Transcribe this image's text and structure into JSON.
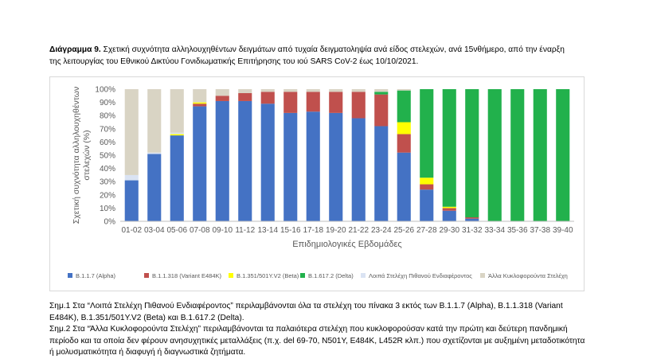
{
  "caption": {
    "bold": "Διάγραμμα 9.",
    "text": " Σχετική συχνότητα αλληλουχηθέντων δειγμάτων από τυχαία δειγματοληψία ανά είδος στελεχών, ανά 15νθήμερο, από την έναρξη της λειτουργίας του Εθνικού Δικτύου Γονιδιωματικής Επιτήρησης του ιού SARS CoV-2 έως 10/10/2021."
  },
  "notes": [
    "Σημ.1 Στα “Λοιπά Στελέχη Πιθανού Ενδιαφέροντος” περιλαμβάνονται όλα τα στελέχη του πίνακα 3 εκτός των B.1.1.7 (Alpha), B.1.1.318 (Variant E484K), B.1.351/501Y.V2 (Beta) και B.1.617.2 (Delta).",
    "Σημ.2 Στα “Άλλα Κυκλοφορούντα Στελέχη” περιλαμβάνονται τα παλαιότερα στελέχη που κυκλοφορούσαν κατά την πρώτη και δεύτερη πανδημική περίοδο και τα οποία δεν φέρουν ανησυχητικές μεταλλάξεις (π.χ. del 69-70, N501Y, E484K, L452R κλπ.) που σχετίζονται με αυξημένη μεταδοτικότητα ή μολυσματικότητα ή διαφυγή ή διαγνωστικά ζητήματα."
  ],
  "chart_data": {
    "type": "bar",
    "stacked": true,
    "xlabel": "Επιδημιολογικές Εβδομάδες",
    "ylabel": "Σχετική συχνότητα αλληλουχηθέντων στελεχών (%)",
    "ylim": [
      0,
      100
    ],
    "yticks": [
      "0%",
      "10%",
      "20%",
      "30%",
      "40%",
      "50%",
      "60%",
      "70%",
      "80%",
      "90%",
      "100%"
    ],
    "grid": false,
    "legend_position": "bottom",
    "categories": [
      "01-02",
      "03-04",
      "05-06",
      "07-08",
      "09-10",
      "11-12",
      "13-14",
      "15-16",
      "17-18",
      "19-20",
      "21-22",
      "23-24",
      "25-26",
      "27-28",
      "29-30",
      "31-32",
      "33-34",
      "35-36",
      "37-38",
      "39-40"
    ],
    "series": [
      {
        "name": "B.1.1.7 (Alpha)",
        "color": "#4472c4",
        "values": [
          31,
          51,
          65,
          87,
          91,
          91,
          89,
          82,
          83,
          82,
          78,
          72,
          52,
          24,
          8,
          2,
          0,
          0,
          0,
          0
        ]
      },
      {
        "name": "B.1.1.318 (Variant E484K)",
        "color": "#c0504d",
        "values": [
          0,
          0,
          0,
          2,
          4,
          6,
          9,
          16,
          15,
          16,
          20,
          24,
          14,
          4,
          2,
          1,
          0,
          0,
          0,
          0
        ]
      },
      {
        "name": "B.1.351/501Y.V2 (Beta)",
        "color": "#ffff00",
        "values": [
          0,
          0,
          1,
          1,
          0,
          0,
          0,
          0,
          0,
          0,
          0,
          0,
          9,
          5,
          1,
          0,
          0,
          0,
          0,
          0
        ]
      },
      {
        "name": "B.1.617.2 (Delta)",
        "color": "#22b14c",
        "values": [
          0,
          0,
          0,
          0,
          0,
          0,
          0,
          0,
          0,
          0,
          0,
          2,
          24,
          67,
          89,
          97,
          100,
          100,
          100,
          100
        ]
      },
      {
        "name": "Λοιπά Στελέχη Πιθανού Ενδιαφέροντος",
        "color": "#dae3f3",
        "values": [
          4,
          1,
          1,
          0,
          0,
          0,
          0,
          0,
          0,
          0,
          0,
          0,
          0,
          0,
          0,
          0,
          0,
          0,
          0,
          0
        ]
      },
      {
        "name": "Άλλα Κυκλοφορούντα Στελέχη",
        "color": "#d9d4c4",
        "values": [
          65,
          48,
          33,
          10,
          5,
          3,
          2,
          2,
          2,
          2,
          2,
          2,
          1,
          0,
          0,
          0,
          0,
          0,
          0,
          0
        ]
      }
    ]
  }
}
